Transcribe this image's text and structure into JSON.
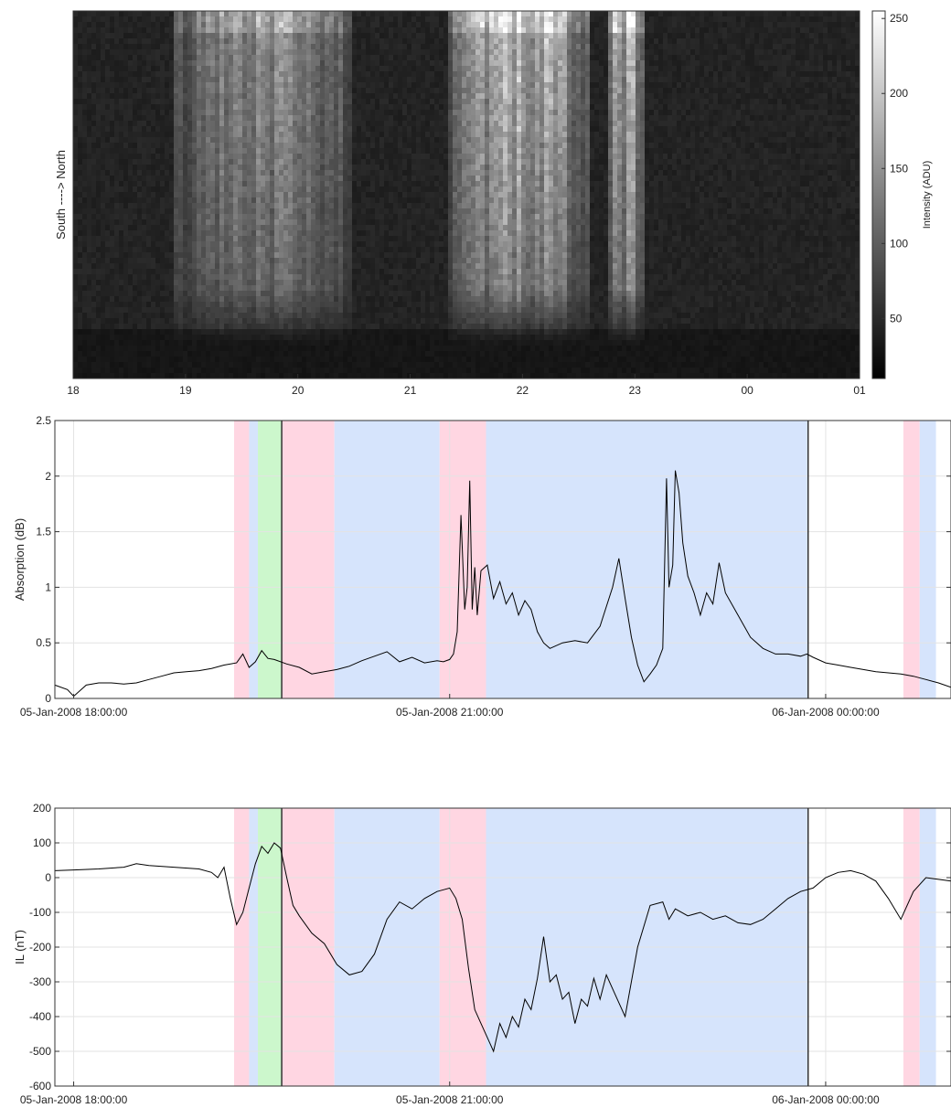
{
  "colors": {
    "storm_pink": "#ffd6e2",
    "storm_blue": "#d6e4fc",
    "storm_green": "#ccf7cc",
    "line": "#000000",
    "grid": "#e3e3e3"
  },
  "chart_data": [
    {
      "type": "heatmap",
      "title": "",
      "ylabel": "South  ---->  North",
      "xlabel": "",
      "x_ticks": [
        "18",
        "19",
        "20",
        "21",
        "22",
        "23",
        "00",
        "01"
      ],
      "x_range_hours": [
        18,
        25
      ],
      "colormap": "gray",
      "colorbar": {
        "label": "Intensity (ADU)",
        "ticks": [
          "250",
          "200",
          "150",
          "100",
          "50"
        ],
        "range": [
          10,
          255
        ]
      },
      "bright_features": [
        {
          "start_hour": 18.9,
          "end_hour": 20.5,
          "peak": 170
        },
        {
          "start_hour": 21.35,
          "end_hour": 22.6,
          "peak": 240
        },
        {
          "start_hour": 22.75,
          "end_hour": 23.1,
          "peak": 230
        }
      ]
    },
    {
      "type": "line",
      "title": "",
      "xlabel": "",
      "ylabel": "Absorption (dB)",
      "ylim": [
        0,
        2.5
      ],
      "y_ticks": [
        "0",
        "0.5",
        "1",
        "1.5",
        "2",
        "2.5"
      ],
      "x_ticks": [
        {
          "hour": 18,
          "label": "05-Jan-2008 18:00:00"
        },
        {
          "hour": 21,
          "label": "05-Jan-2008 21:00:00"
        },
        {
          "hour": 24,
          "label": "06-Jan-2008 00:00:00"
        }
      ],
      "x_range_hours": [
        17.85,
        25.0
      ],
      "grid": true,
      "shaded_intervals": [
        {
          "start": 19.28,
          "end": 19.4,
          "color": "pink"
        },
        {
          "start": 19.4,
          "end": 19.47,
          "color": "blue"
        },
        {
          "start": 19.47,
          "end": 19.66,
          "color": "green"
        },
        {
          "start": 19.66,
          "end": 20.08,
          "color": "pink"
        },
        {
          "start": 20.08,
          "end": 20.92,
          "color": "blue"
        },
        {
          "start": 20.92,
          "end": 21.29,
          "color": "pink"
        },
        {
          "start": 21.29,
          "end": 23.86,
          "color": "blue"
        },
        {
          "start": 24.62,
          "end": 24.75,
          "color": "pink"
        },
        {
          "start": 24.75,
          "end": 24.88,
          "color": "blue"
        }
      ],
      "vertical_lines": [
        19.66,
        23.86
      ],
      "series": [
        {
          "x": [
            17.85,
            17.95,
            18.0,
            18.1,
            18.2,
            18.3,
            18.4,
            18.5,
            18.6,
            18.7,
            18.8,
            18.9,
            19.0,
            19.1,
            19.2,
            19.3,
            19.35,
            19.4,
            19.45,
            19.5,
            19.55,
            19.6,
            19.7,
            19.8,
            19.9,
            20.0,
            20.1,
            20.2,
            20.3,
            20.4,
            20.5,
            20.6,
            20.7,
            20.8,
            20.9,
            20.95,
            21.0,
            21.03,
            21.06,
            21.09,
            21.12,
            21.14,
            21.16,
            21.18,
            21.2,
            21.22,
            21.25,
            21.3,
            21.35,
            21.4,
            21.45,
            21.5,
            21.55,
            21.6,
            21.65,
            21.7,
            21.75,
            21.8,
            21.9,
            22.0,
            22.1,
            22.2,
            22.3,
            22.35,
            22.4,
            22.45,
            22.5,
            22.55,
            22.6,
            22.65,
            22.7,
            22.73,
            22.75,
            22.78,
            22.8,
            22.83,
            22.86,
            22.9,
            22.95,
            23.0,
            23.05,
            23.1,
            23.15,
            23.2,
            23.3,
            23.4,
            23.5,
            23.6,
            23.7,
            23.8,
            23.85,
            23.9,
            24.0,
            24.1,
            24.2,
            24.3,
            24.4,
            24.5,
            24.6,
            24.7,
            24.8,
            24.9,
            25.0
          ],
          "y": [
            0.12,
            0.08,
            0.02,
            0.12,
            0.14,
            0.14,
            0.13,
            0.14,
            0.17,
            0.2,
            0.23,
            0.24,
            0.25,
            0.27,
            0.3,
            0.32,
            0.4,
            0.28,
            0.33,
            0.43,
            0.36,
            0.35,
            0.31,
            0.28,
            0.22,
            0.24,
            0.26,
            0.29,
            0.34,
            0.38,
            0.42,
            0.33,
            0.37,
            0.32,
            0.34,
            0.33,
            0.35,
            0.4,
            0.6,
            1.65,
            0.8,
            1.0,
            1.96,
            0.8,
            1.18,
            0.75,
            1.15,
            1.2,
            0.9,
            1.05,
            0.85,
            0.95,
            0.75,
            0.88,
            0.8,
            0.6,
            0.5,
            0.45,
            0.5,
            0.52,
            0.5,
            0.65,
            1.0,
            1.26,
            0.9,
            0.55,
            0.3,
            0.15,
            0.22,
            0.3,
            0.45,
            1.98,
            1.0,
            1.2,
            2.05,
            1.85,
            1.4,
            1.1,
            0.95,
            0.75,
            0.95,
            0.85,
            1.22,
            0.95,
            0.75,
            0.55,
            0.45,
            0.4,
            0.4,
            0.38,
            0.4,
            0.37,
            0.32,
            0.3,
            0.28,
            0.26,
            0.24,
            0.23,
            0.22,
            0.2,
            0.17,
            0.14,
            0.1
          ]
        }
      ]
    },
    {
      "type": "line",
      "title": "",
      "xlabel": "",
      "ylabel": "IL (nT)",
      "ylim": [
        -600,
        200
      ],
      "y_ticks": [
        "200",
        "100",
        "0",
        "-100",
        "-200",
        "-300",
        "-400",
        "-500",
        "-600"
      ],
      "x_ticks": [
        {
          "hour": 18,
          "label": "05-Jan-2008 18:00:00"
        },
        {
          "hour": 21,
          "label": "05-Jan-2008 21:00:00"
        },
        {
          "hour": 24,
          "label": "06-Jan-2008 00:00:00"
        }
      ],
      "x_range_hours": [
        17.85,
        25.0
      ],
      "grid": true,
      "shaded_intervals": [
        {
          "start": 19.28,
          "end": 19.4,
          "color": "pink"
        },
        {
          "start": 19.4,
          "end": 19.47,
          "color": "blue"
        },
        {
          "start": 19.47,
          "end": 19.66,
          "color": "green"
        },
        {
          "start": 19.66,
          "end": 20.08,
          "color": "pink"
        },
        {
          "start": 20.08,
          "end": 20.92,
          "color": "blue"
        },
        {
          "start": 20.92,
          "end": 21.29,
          "color": "pink"
        },
        {
          "start": 21.29,
          "end": 23.86,
          "color": "blue"
        },
        {
          "start": 24.62,
          "end": 24.75,
          "color": "pink"
        },
        {
          "start": 24.75,
          "end": 24.88,
          "color": "blue"
        }
      ],
      "vertical_lines": [
        19.66,
        23.86
      ],
      "series": [
        {
          "x": [
            17.85,
            18.0,
            18.2,
            18.4,
            18.5,
            18.6,
            18.8,
            19.0,
            19.1,
            19.15,
            19.2,
            19.25,
            19.3,
            19.35,
            19.4,
            19.45,
            19.5,
            19.55,
            19.6,
            19.65,
            19.7,
            19.75,
            19.8,
            19.9,
            20.0,
            20.1,
            20.2,
            20.3,
            20.4,
            20.5,
            20.6,
            20.7,
            20.8,
            20.9,
            20.95,
            21.0,
            21.05,
            21.1,
            21.15,
            21.2,
            21.25,
            21.3,
            21.35,
            21.4,
            21.45,
            21.5,
            21.55,
            21.6,
            21.65,
            21.7,
            21.75,
            21.8,
            21.85,
            21.9,
            21.95,
            22.0,
            22.05,
            22.1,
            22.15,
            22.2,
            22.25,
            22.3,
            22.4,
            22.5,
            22.6,
            22.7,
            22.75,
            22.8,
            22.9,
            23.0,
            23.1,
            23.2,
            23.3,
            23.4,
            23.5,
            23.6,
            23.7,
            23.8,
            23.9,
            24.0,
            24.1,
            24.2,
            24.3,
            24.4,
            24.5,
            24.6,
            24.7,
            24.8,
            24.9,
            25.0
          ],
          "y": [
            20,
            22,
            25,
            30,
            40,
            35,
            30,
            25,
            15,
            0,
            30,
            -60,
            -135,
            -100,
            -30,
            40,
            90,
            70,
            100,
            85,
            0,
            -80,
            -110,
            -160,
            -190,
            -250,
            -280,
            -270,
            -220,
            -120,
            -70,
            -90,
            -60,
            -40,
            -35,
            -30,
            -60,
            -120,
            -260,
            -380,
            -420,
            -460,
            -500,
            -420,
            -460,
            -400,
            -430,
            -350,
            -380,
            -290,
            -170,
            -300,
            -280,
            -350,
            -330,
            -420,
            -350,
            -370,
            -290,
            -350,
            -280,
            -320,
            -400,
            -200,
            -80,
            -70,
            -120,
            -90,
            -110,
            -100,
            -120,
            -110,
            -130,
            -135,
            -120,
            -90,
            -60,
            -40,
            -30,
            0,
            15,
            20,
            10,
            -10,
            -60,
            -120,
            -40,
            0,
            -5,
            -10
          ]
        }
      ]
    }
  ]
}
